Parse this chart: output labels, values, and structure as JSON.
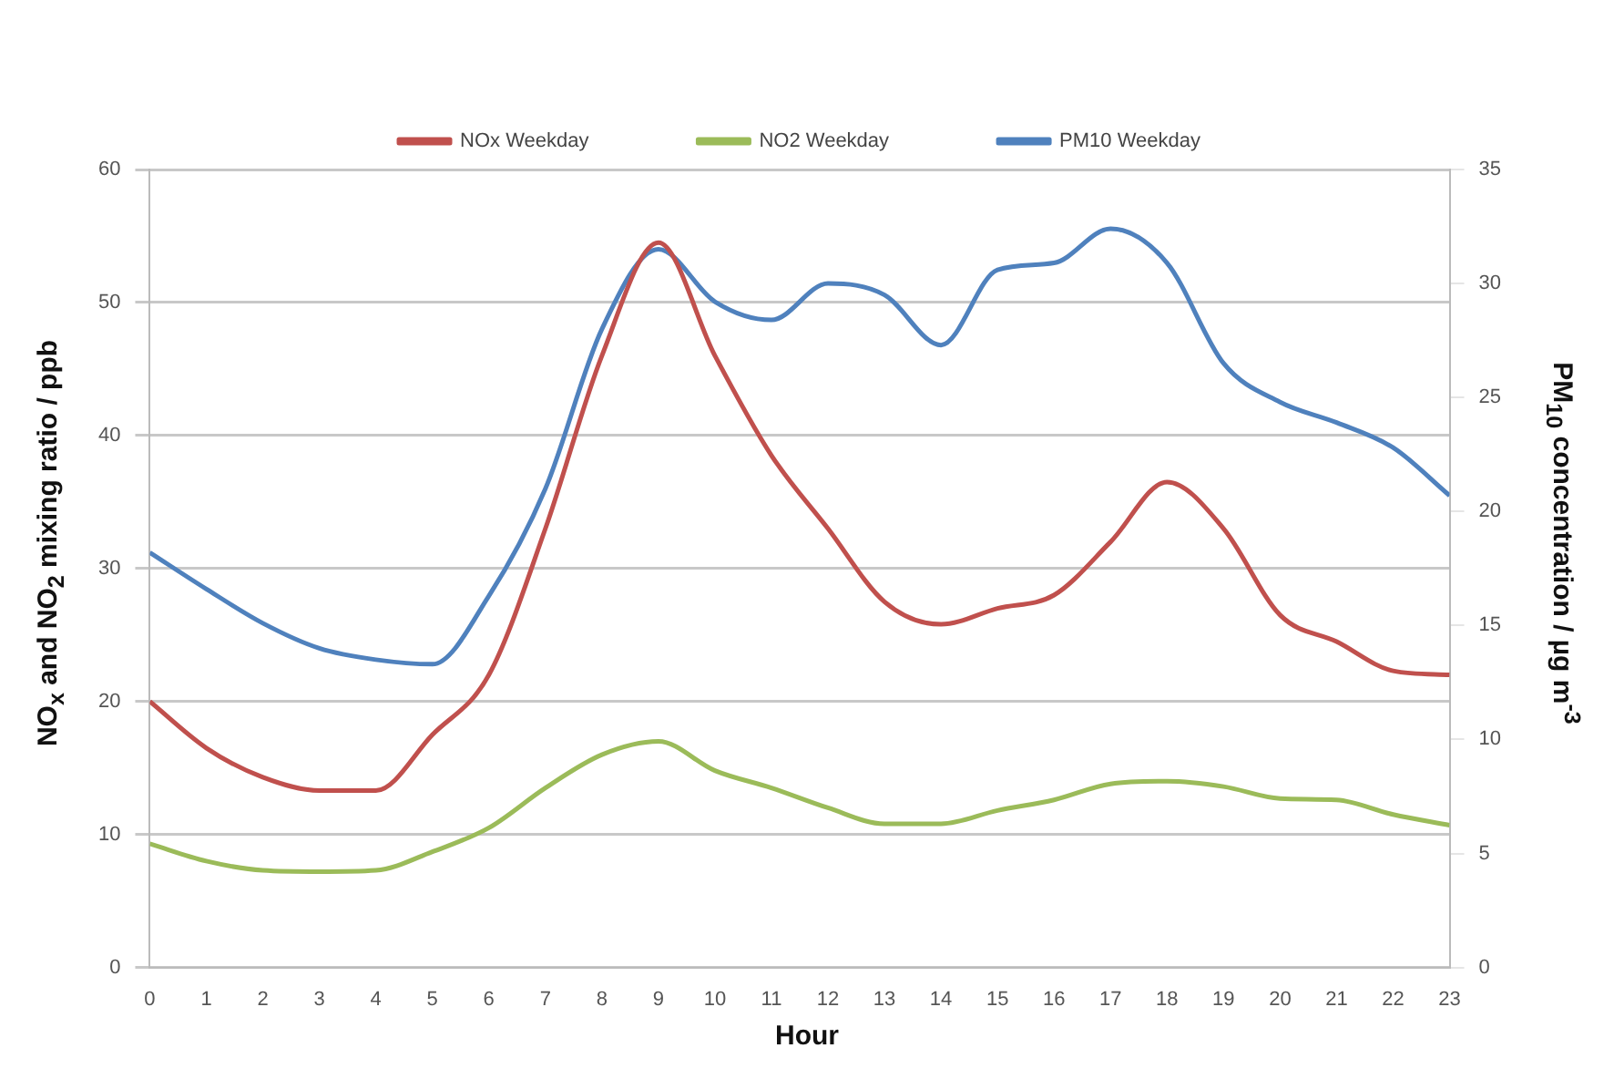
{
  "chart_data": {
    "type": "line",
    "xlabel": "Hour",
    "ylabel": "NO$_{x}$ and NO$_{2}$ mixing ratio / ppb",
    "y2label": "PM$_{10}$ concentration / µg m$^{-3}$",
    "x": [
      0,
      1,
      2,
      3,
      4,
      5,
      6,
      7,
      8,
      9,
      10,
      11,
      12,
      13,
      14,
      15,
      16,
      17,
      18,
      19,
      20,
      21,
      22,
      23
    ],
    "xlim": [
      0,
      23
    ],
    "xticks": [
      0,
      1,
      2,
      3,
      4,
      5,
      6,
      7,
      8,
      9,
      10,
      11,
      12,
      13,
      14,
      15,
      16,
      17,
      18,
      19,
      20,
      21,
      22,
      23
    ],
    "ylim": [
      0,
      60
    ],
    "yticks": [
      0,
      10,
      20,
      30,
      40,
      50,
      60
    ],
    "y2lim": [
      0,
      35
    ],
    "y2ticks": [
      0,
      5,
      10,
      15,
      20,
      25,
      30,
      35
    ],
    "grid": "y",
    "legend": "top",
    "marker": "none",
    "line_style": "solid",
    "series": [
      {
        "name": "NOx Weekday",
        "color": "#c0504d",
        "values": [
          20,
          16.5,
          14.3,
          13.3,
          13.3,
          17.5,
          22,
          33,
          46,
          54.5,
          46,
          38.5,
          33,
          27.5,
          25.8,
          27,
          28,
          32,
          36.5,
          33,
          26.5,
          24.5,
          22.3,
          22
        ]
      },
      {
        "name": "NO2 Weekday",
        "color": "#9bbb59",
        "values": [
          9.3,
          8,
          7.3,
          7.2,
          7.3,
          8.7,
          10.5,
          13.5,
          16,
          17,
          14.8,
          13.5,
          12,
          10.8,
          10.8,
          11.8,
          12.6,
          13.8,
          14,
          13.6,
          12.7,
          12.6,
          11.5,
          10.7
        ]
      },
      {
        "name": "PM10 Weekday",
        "color": "#4f81bd",
        "axis": "y2",
        "values": [
          18.2,
          16.6,
          15.1,
          14.0,
          13.5,
          13.3,
          16.3,
          21.0,
          28.0,
          31.5,
          29.2,
          28.4,
          30.0,
          29.5,
          27.3,
          30.6,
          30.9,
          32.4,
          30.9,
          26.5,
          24.8,
          23.9,
          22.8,
          20.7
        ]
      }
    ]
  }
}
